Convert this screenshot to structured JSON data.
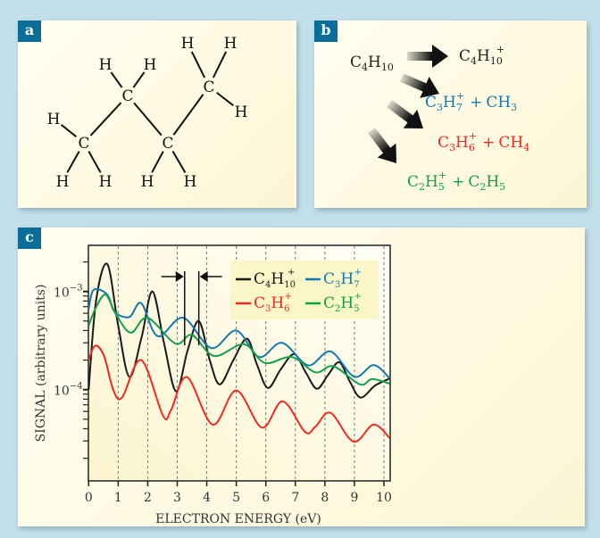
{
  "panels": {
    "a": "a",
    "b": "b",
    "c": "c"
  },
  "molecule": {
    "carbon": "C",
    "hydrogen": "H"
  },
  "reactions": {
    "reactant": {
      "main": "C",
      "s1": "4",
      "h": "H",
      "s2": "10"
    },
    "items": [
      {
        "c": "C",
        "cs": "4",
        "h": "H",
        "hs": "10",
        "charge": "+",
        "plus": "",
        "product": "",
        "ps": "",
        "color": "#222222"
      },
      {
        "c": "C",
        "cs": "3",
        "h": "H",
        "hs": "7",
        "charge": "+",
        "plus": "+",
        "product": "CH",
        "ps": "3",
        "color": "#1479b0"
      },
      {
        "c": "C",
        "cs": "3",
        "h": "H",
        "hs": "6",
        "charge": "+",
        "plus": "+",
        "product": "CH",
        "ps": "4",
        "color": "#ee2a24"
      },
      {
        "c": "C",
        "cs": "2",
        "h": "H",
        "hs": "5",
        "charge": "+",
        "plus": "+",
        "product": "C",
        "ps": "2",
        "product2": "H",
        "ps2": "5",
        "color": "#14a04a"
      }
    ]
  },
  "chart_data": {
    "type": "line",
    "xlabel": "ELECTRON ENERGY (eV)",
    "ylabel": "SIGNAL (arbitrary units)",
    "xlim": [
      0,
      10.2
    ],
    "ylim": [
      1.2e-05,
      0.003
    ],
    "yscale": "log",
    "xticks": [
      "0",
      "1",
      "2",
      "3",
      "4",
      "5",
      "6",
      "7",
      "8",
      "9",
      "10"
    ],
    "yticks": [
      {
        "label": "10",
        "exp": "−3",
        "value": 0.001
      },
      {
        "label": "10",
        "exp": "−4",
        "value": 0.0001
      }
    ],
    "grid": "vertical dashed at integer eV",
    "markers": [
      3.25,
      3.73
    ],
    "legend_position": "top-right",
    "series": [
      {
        "name": "C4H10+",
        "base": "C",
        "s1": "4",
        "h": "H",
        "s2": "10",
        "charge": "+",
        "color": "#1a1a1a",
        "x": [
          0,
          0.25,
          0.63,
          1.0,
          1.38,
          1.8,
          2.16,
          2.55,
          2.96,
          3.35,
          3.73,
          4.1,
          4.44,
          4.9,
          5.36,
          5.7,
          6.07,
          6.5,
          6.96,
          7.35,
          7.73,
          8.1,
          8.49,
          8.85,
          9.21,
          9.7,
          10.2
        ],
        "y": [
          0.0001,
          0.0008,
          0.0019,
          0.00045,
          0.000135,
          0.00035,
          0.001,
          0.0003,
          9.6e-05,
          0.00025,
          0.0005,
          0.0002,
          0.000113,
          0.0002,
          0.00033,
          0.00018,
          0.000104,
          0.00016,
          0.00023,
          0.00015,
          0.000102,
          0.00014,
          0.00019,
          0.00012,
          8.3e-05,
          0.00011,
          0.00013
        ]
      },
      {
        "name": "C3H7+",
        "base": "C",
        "s1": "3",
        "h": "H",
        "s2": "7",
        "charge": "+",
        "color": "#1479b0",
        "x": [
          0,
          0.17,
          0.63,
          0.88,
          1.38,
          1.78,
          2.34,
          3.2,
          4.15,
          5.0,
          5.77,
          6.55,
          7.43,
          8.19,
          9.0,
          9.65,
          10.2
        ],
        "y": [
          0.00066,
          0.00104,
          0.00093,
          0.00062,
          0.00055,
          0.00076,
          0.00035,
          0.00054,
          0.000265,
          0.0004,
          0.000215,
          0.0003,
          0.000177,
          0.000245,
          0.000135,
          0.000178,
          0.00013
        ]
      },
      {
        "name": "C3H6+",
        "base": "C",
        "s1": "3",
        "h": "H",
        "s2": "6",
        "charge": "+",
        "color": "#ee2a24",
        "x": [
          0,
          0.22,
          0.52,
          0.83,
          1.13,
          1.78,
          2.52,
          2.79,
          3.33,
          4.2,
          5.0,
          5.87,
          6.57,
          7.33,
          7.68,
          8.19,
          8.97,
          9.65,
          10.2
        ],
        "y": [
          0.0002,
          0.00028,
          0.00022,
          0.0001,
          8.3e-05,
          0.0002,
          5.4e-05,
          6.2e-05,
          0.000134,
          4.4e-05,
          9.8e-05,
          4.1e-05,
          7.6e-05,
          3.7e-05,
          4.2e-05,
          5.8e-05,
          2.95e-05,
          4.4e-05,
          3.2e-05
        ]
      },
      {
        "name": "C2H5+",
        "base": "C",
        "s1": "2",
        "h": "H",
        "s2": "5",
        "charge": "+",
        "color": "#14a04a",
        "x": [
          0,
          0.22,
          0.57,
          0.93,
          1.43,
          1.99,
          2.94,
          3.5,
          4.25,
          5.26,
          5.97,
          6.88,
          7.68,
          8.29,
          9.19,
          9.6,
          10.2
        ],
        "y": [
          0.00045,
          0.00066,
          0.00093,
          0.00058,
          0.00038,
          0.00054,
          0.000295,
          0.00036,
          0.00022,
          0.00029,
          0.000187,
          0.000215,
          0.00015,
          0.000173,
          0.000113,
          0.000128,
          0.000115
        ]
      }
    ]
  }
}
